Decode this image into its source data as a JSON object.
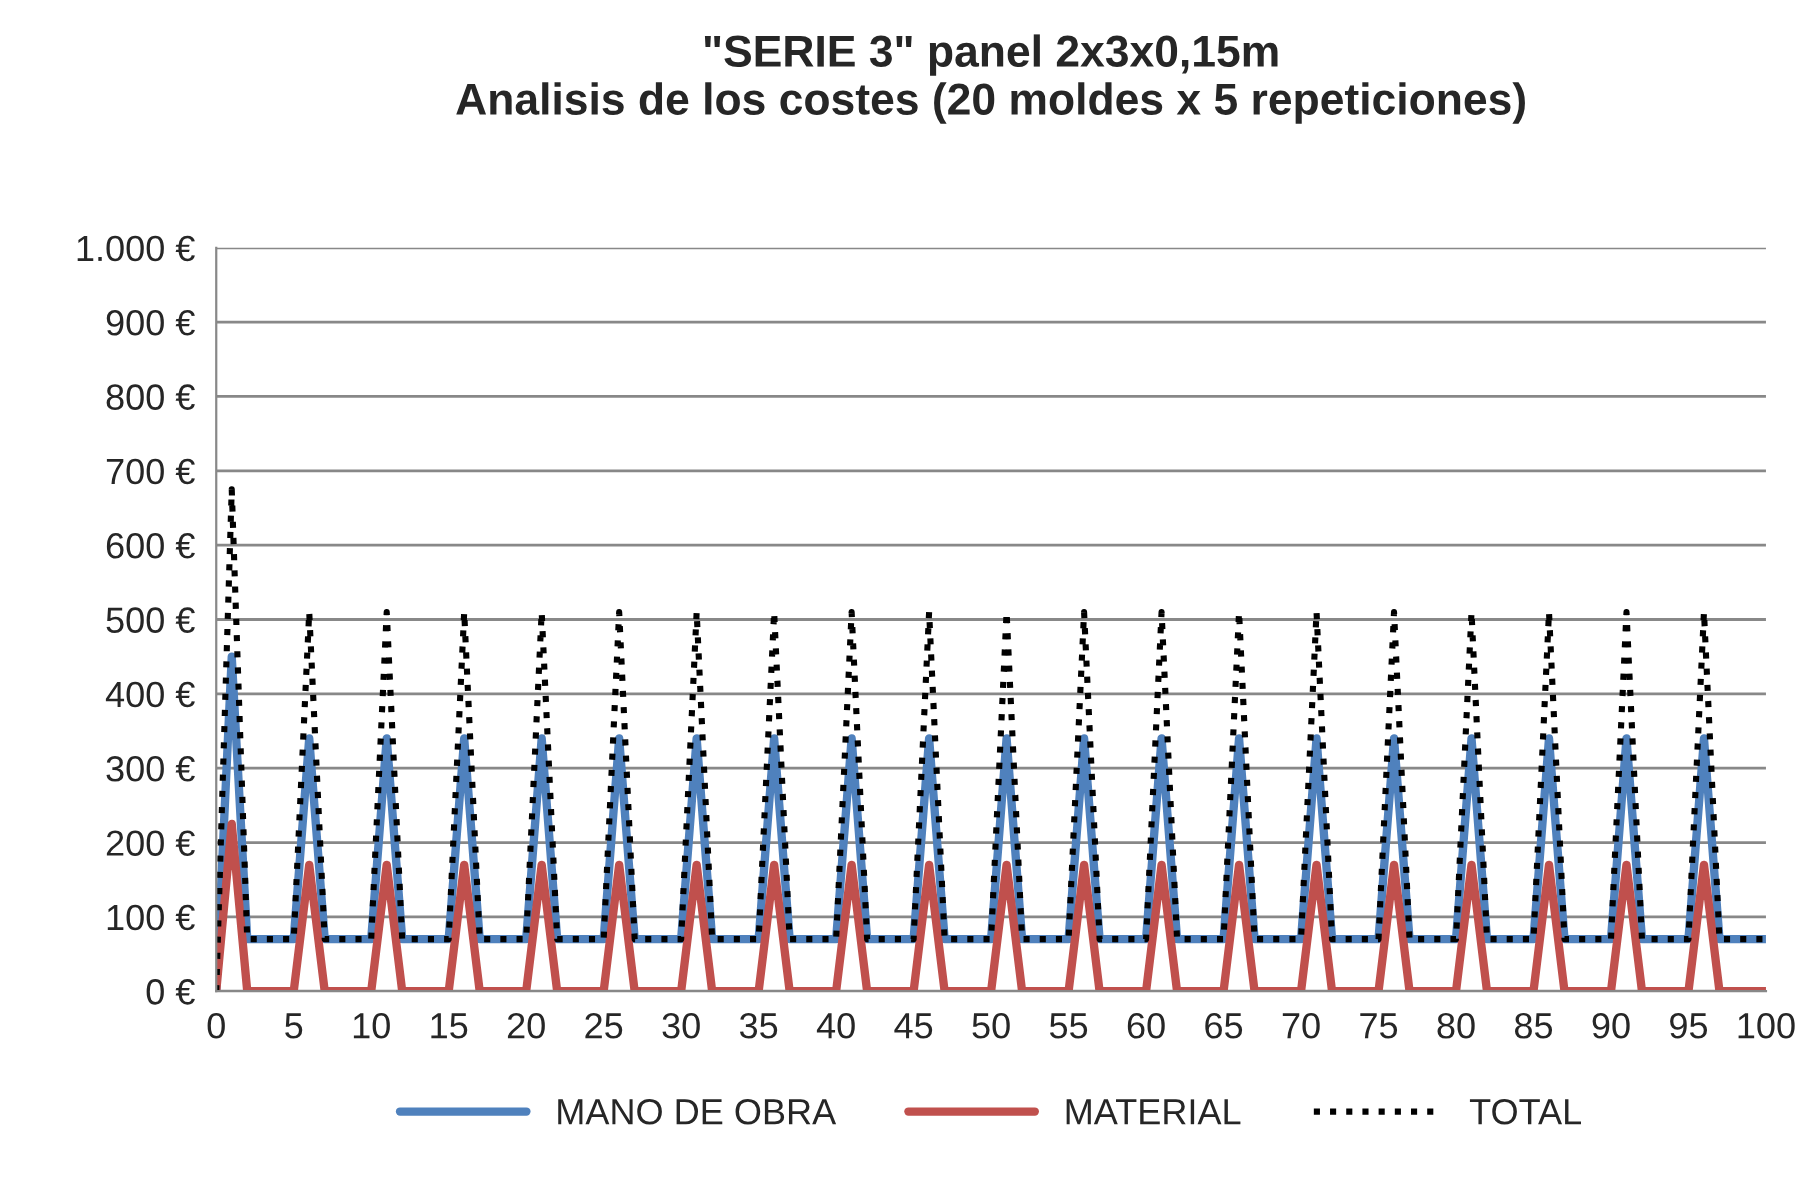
{
  "chart_data": {
    "type": "line",
    "title": "\"SERIE 3\" panel 2x3x0,15m\nAnalisis de los costes (20 moldes x 5 repeticiones)",
    "x": [
      0,
      1,
      2,
      3,
      4,
      5,
      6,
      7,
      8,
      9,
      10,
      11,
      12,
      13,
      14,
      15,
      16,
      17,
      18,
      19,
      20,
      21,
      22,
      23,
      24,
      25,
      26,
      27,
      28,
      29,
      30,
      31,
      32,
      33,
      34,
      35,
      36,
      37,
      38,
      39,
      40,
      41,
      42,
      43,
      44,
      45,
      46,
      47,
      48,
      49,
      50,
      51,
      52,
      53,
      54,
      55,
      56,
      57,
      58,
      59,
      60,
      61,
      62,
      63,
      64,
      65,
      66,
      67,
      68,
      69,
      70,
      71,
      72,
      73,
      74,
      75,
      76,
      77,
      78,
      79,
      80,
      81,
      82,
      83,
      84,
      85,
      86,
      87,
      88,
      89,
      90,
      91,
      92,
      93,
      94,
      95,
      96,
      97,
      98,
      99,
      100
    ],
    "series": [
      {
        "name": "MANO DE OBRA",
        "color": "#4f81bd",
        "line_style": "solid",
        "values": [
          0,
          450,
          70,
          70,
          70,
          70,
          340,
          70,
          70,
          70,
          70,
          340,
          70,
          70,
          70,
          70,
          340,
          70,
          70,
          70,
          70,
          340,
          70,
          70,
          70,
          70,
          340,
          70,
          70,
          70,
          70,
          340,
          70,
          70,
          70,
          70,
          340,
          70,
          70,
          70,
          70,
          340,
          70,
          70,
          70,
          70,
          340,
          70,
          70,
          70,
          70,
          340,
          70,
          70,
          70,
          70,
          340,
          70,
          70,
          70,
          70,
          340,
          70,
          70,
          70,
          70,
          340,
          70,
          70,
          70,
          70,
          340,
          70,
          70,
          70,
          70,
          340,
          70,
          70,
          70,
          70,
          340,
          70,
          70,
          70,
          70,
          340,
          70,
          70,
          70,
          70,
          340,
          70,
          70,
          70,
          70,
          340,
          70,
          70,
          70,
          70
        ]
      },
      {
        "name": "MATERIAL",
        "color": "#c0504d",
        "line_style": "solid",
        "values": [
          0,
          225,
          0,
          0,
          0,
          0,
          170,
          0,
          0,
          0,
          0,
          170,
          0,
          0,
          0,
          0,
          170,
          0,
          0,
          0,
          0,
          170,
          0,
          0,
          0,
          0,
          170,
          0,
          0,
          0,
          0,
          170,
          0,
          0,
          0,
          0,
          170,
          0,
          0,
          0,
          0,
          170,
          0,
          0,
          0,
          0,
          170,
          0,
          0,
          0,
          0,
          170,
          0,
          0,
          0,
          0,
          170,
          0,
          0,
          0,
          0,
          170,
          0,
          0,
          0,
          0,
          170,
          0,
          0,
          0,
          0,
          170,
          0,
          0,
          0,
          0,
          170,
          0,
          0,
          0,
          0,
          170,
          0,
          0,
          0,
          0,
          170,
          0,
          0,
          0,
          0,
          170,
          0,
          0,
          0,
          0,
          170,
          0,
          0,
          0,
          0
        ]
      },
      {
        "name": "TOTAL",
        "color": "#000000",
        "line_style": "dotted",
        "values": [
          0,
          675,
          70,
          70,
          70,
          70,
          510,
          70,
          70,
          70,
          70,
          510,
          70,
          70,
          70,
          70,
          510,
          70,
          70,
          70,
          70,
          510,
          70,
          70,
          70,
          70,
          510,
          70,
          70,
          70,
          70,
          510,
          70,
          70,
          70,
          70,
          510,
          70,
          70,
          70,
          70,
          510,
          70,
          70,
          70,
          70,
          510,
          70,
          70,
          70,
          70,
          510,
          70,
          70,
          70,
          70,
          510,
          70,
          70,
          70,
          70,
          510,
          70,
          70,
          70,
          70,
          510,
          70,
          70,
          70,
          70,
          510,
          70,
          70,
          70,
          70,
          510,
          70,
          70,
          70,
          70,
          510,
          70,
          70,
          70,
          70,
          510,
          70,
          70,
          70,
          70,
          510,
          70,
          70,
          70,
          70,
          510,
          70,
          70,
          70,
          70
        ]
      }
    ],
    "xlim": [
      0,
      100
    ],
    "xticks": [
      0,
      5,
      10,
      15,
      20,
      25,
      30,
      35,
      40,
      45,
      50,
      55,
      60,
      65,
      70,
      75,
      80,
      85,
      90,
      95,
      100
    ],
    "ylim": [
      0,
      1000
    ],
    "yticks": [
      {
        "value": 0,
        "label": "0 €"
      },
      {
        "value": 100,
        "label": "100 €"
      },
      {
        "value": 200,
        "label": "200 €"
      },
      {
        "value": 300,
        "label": "300 €"
      },
      {
        "value": 400,
        "label": "400 €"
      },
      {
        "value": 500,
        "label": "500 €"
      },
      {
        "value": 600,
        "label": "600 €"
      },
      {
        "value": 700,
        "label": "700 €"
      },
      {
        "value": 800,
        "label": "800 €"
      },
      {
        "value": 900,
        "label": "900 €"
      },
      {
        "value": 1000,
        "label": "1.000 €"
      }
    ],
    "grid": "y",
    "legend": "bottom",
    "marker": "none"
  }
}
